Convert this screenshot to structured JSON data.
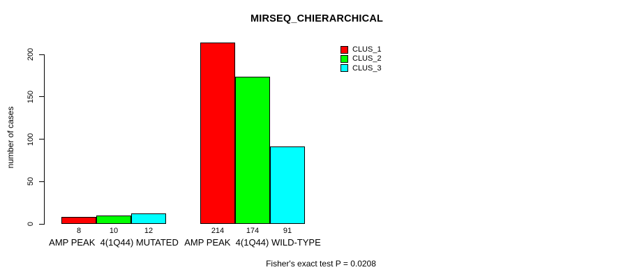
{
  "title": "MIRSEQ_CHIERARCHICAL",
  "footer": "Fisher's exact test P = 0.0208",
  "chart_data": {
    "type": "bar",
    "title": "MIRSEQ_CHIERARCHICAL",
    "categories": [
      "AMP PEAK  4(1Q44) MUTATED",
      "AMP PEAK  4(1Q44) WILD-TYPE"
    ],
    "series": [
      {
        "name": "CLUS_1",
        "color": "#ff0000",
        "values": [
          8,
          214
        ]
      },
      {
        "name": "CLUS_2",
        "color": "#00ff00",
        "values": [
          10,
          174
        ]
      },
      {
        "name": "CLUS_3",
        "color": "#00ffff",
        "values": [
          12,
          91
        ]
      }
    ],
    "show_bar_value_labels": true,
    "bar_value_labels": [
      [
        8,
        10,
        12
      ],
      [
        214,
        174,
        91
      ]
    ],
    "xlabel": "",
    "ylabel": "number of cases",
    "yticks": [
      0,
      50,
      100,
      150,
      200
    ],
    "ylim": [
      0,
      220
    ],
    "grid": false,
    "legend": {
      "position": "top-right",
      "entries": [
        "CLUS_1",
        "CLUS_2",
        "CLUS_3"
      ]
    },
    "annotation": "Fisher's exact test P = 0.0208"
  }
}
